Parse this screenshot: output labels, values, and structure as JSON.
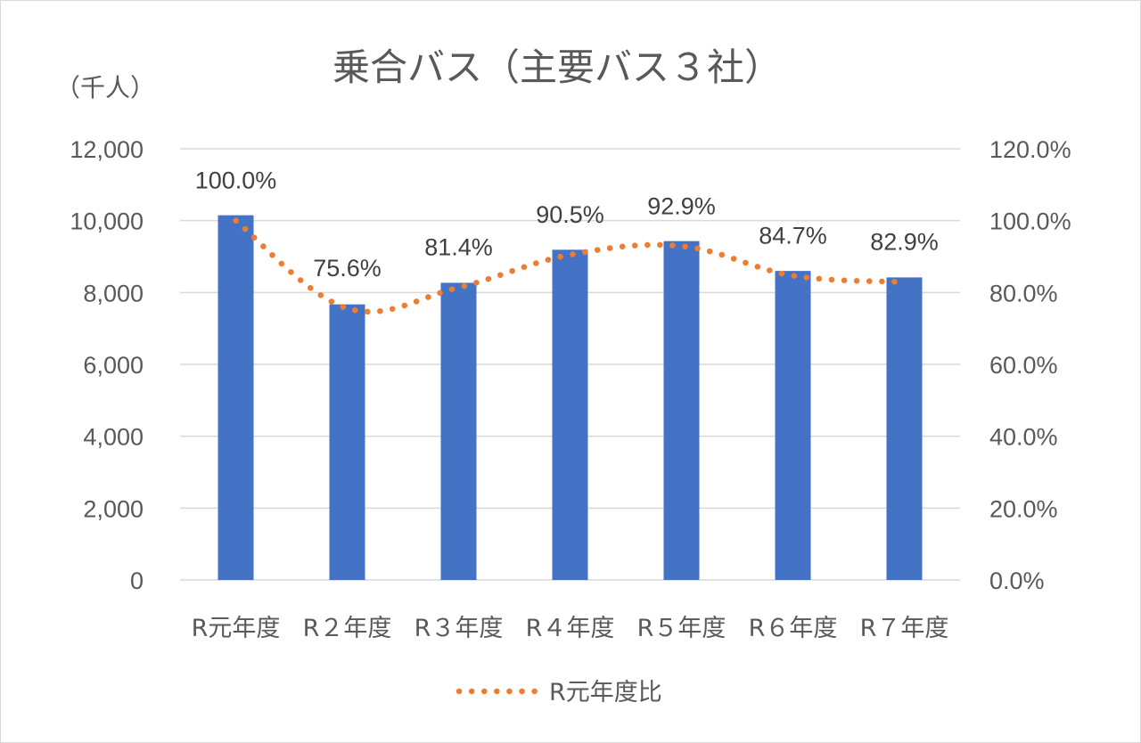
{
  "chart_data": {
    "type": "bar",
    "title": "乗合バス（主要バス３社）",
    "y_unit_label": "（千人）",
    "categories": [
      "R元年度",
      "R２年度",
      "R３年度",
      "R４年度",
      "R５年度",
      "R６年度",
      "R７年度"
    ],
    "series": [
      {
        "type": "bar",
        "axis": "left",
        "values": [
          10150,
          7670,
          8270,
          9190,
          9430,
          8600,
          8420
        ],
        "color": "#4472c4"
      },
      {
        "name": "R元年度比",
        "type": "line",
        "style": "dotted",
        "axis": "right",
        "values": [
          100.0,
          75.6,
          81.4,
          90.5,
          92.9,
          84.7,
          82.9
        ],
        "data_labels": [
          "100.0%",
          "75.6%",
          "81.4%",
          "90.5%",
          "92.9%",
          "84.7%",
          "82.9%"
        ],
        "color": "#ed7d31"
      }
    ],
    "y_left": {
      "min": 0,
      "max": 12000,
      "ticks": [
        0,
        2000,
        4000,
        6000,
        8000,
        10000,
        12000
      ],
      "tick_labels": [
        "0",
        "2,000",
        "4,000",
        "6,000",
        "8,000",
        "10,000",
        "12,000"
      ]
    },
    "y_right": {
      "min": 0,
      "max": 120,
      "ticks": [
        0,
        20,
        40,
        60,
        80,
        100,
        120
      ],
      "tick_labels": [
        "0.0%",
        "20.0%",
        "40.0%",
        "60.0%",
        "80.0%",
        "100.0%",
        "120.0%"
      ]
    },
    "grid": true,
    "legend": {
      "position": "bottom",
      "entries": [
        "R元年度比"
      ]
    }
  }
}
